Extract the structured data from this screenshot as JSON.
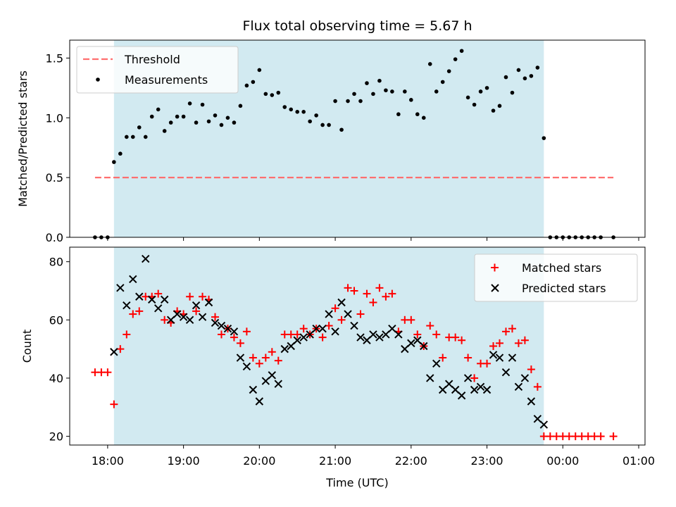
{
  "chart_data": [
    {
      "type": "scatter",
      "title": "Flux total observing time = 5.67 h",
      "ylabel": "Matched/Predicted stars",
      "xlabel": "",
      "xlim": [
        "17:30",
        "01:05"
      ],
      "ylim": [
        0,
        1.65
      ],
      "yticks": [
        "0.0",
        "0.5",
        "1.0",
        "1.5"
      ],
      "grid": false,
      "legend_position": "top-left",
      "observing_window": [
        "18:05",
        "23:45"
      ],
      "colors": {
        "observing_window": "#add8e6",
        "threshold": "#ff6f6f",
        "measurements": "#000000"
      },
      "threshold": {
        "name": "Threshold",
        "value": 0.5,
        "x_range": [
          "17:50",
          "00:40"
        ]
      },
      "series": [
        {
          "name": "Measurements",
          "points": [
            [
              "17:50",
              0
            ],
            [
              "17:55",
              0
            ],
            [
              "18:00",
              0
            ],
            [
              "18:05",
              0.63
            ],
            [
              "18:10",
              0.7
            ],
            [
              "18:15",
              0.84
            ],
            [
              "18:20",
              0.84
            ],
            [
              "18:25",
              0.92
            ],
            [
              "18:30",
              0.84
            ],
            [
              "18:35",
              1.01
            ],
            [
              "18:40",
              1.07
            ],
            [
              "18:45",
              0.89
            ],
            [
              "18:50",
              0.96
            ],
            [
              "18:55",
              1.01
            ],
            [
              "19:00",
              1.01
            ],
            [
              "19:05",
              1.12
            ],
            [
              "19:10",
              0.96
            ],
            [
              "19:15",
              1.11
            ],
            [
              "19:20",
              0.97
            ],
            [
              "19:25",
              1.02
            ],
            [
              "19:30",
              0.94
            ],
            [
              "19:35",
              1.0
            ],
            [
              "19:40",
              0.96
            ],
            [
              "19:45",
              1.1
            ],
            [
              "19:50",
              1.27
            ],
            [
              "19:55",
              1.3
            ],
            [
              "20:00",
              1.4
            ],
            [
              "20:05",
              1.2
            ],
            [
              "20:10",
              1.19
            ],
            [
              "20:15",
              1.21
            ],
            [
              "20:20",
              1.09
            ],
            [
              "20:25",
              1.07
            ],
            [
              "20:30",
              1.05
            ],
            [
              "20:35",
              1.05
            ],
            [
              "20:40",
              0.97
            ],
            [
              "20:45",
              1.02
            ],
            [
              "20:50",
              0.94
            ],
            [
              "20:55",
              0.94
            ],
            [
              "21:00",
              1.14
            ],
            [
              "21:05",
              0.9
            ],
            [
              "21:10",
              1.14
            ],
            [
              "21:15",
              1.2
            ],
            [
              "21:20",
              1.14
            ],
            [
              "21:25",
              1.29
            ],
            [
              "21:30",
              1.2
            ],
            [
              "21:35",
              1.31
            ],
            [
              "21:40",
              1.23
            ],
            [
              "21:45",
              1.22
            ],
            [
              "21:50",
              1.03
            ],
            [
              "21:55",
              1.22
            ],
            [
              "22:00",
              1.15
            ],
            [
              "22:05",
              1.03
            ],
            [
              "22:10",
              1.0
            ],
            [
              "22:15",
              1.45
            ],
            [
              "22:20",
              1.22
            ],
            [
              "22:25",
              1.3
            ],
            [
              "22:30",
              1.39
            ],
            [
              "22:35",
              1.49
            ],
            [
              "22:40",
              1.56
            ],
            [
              "22:45",
              1.17
            ],
            [
              "22:50",
              1.11
            ],
            [
              "22:55",
              1.22
            ],
            [
              "23:00",
              1.25
            ],
            [
              "23:05",
              1.06
            ],
            [
              "23:10",
              1.1
            ],
            [
              "23:15",
              1.34
            ],
            [
              "23:20",
              1.21
            ],
            [
              "23:25",
              1.4
            ],
            [
              "23:30",
              1.33
            ],
            [
              "23:35",
              1.35
            ],
            [
              "23:40",
              1.42
            ],
            [
              "23:45",
              0.83
            ],
            [
              "23:50",
              0
            ],
            [
              "23:55",
              0
            ],
            [
              "00:00",
              0
            ],
            [
              "00:05",
              0
            ],
            [
              "00:10",
              0
            ],
            [
              "00:15",
              0
            ],
            [
              "00:20",
              0
            ],
            [
              "00:25",
              0
            ],
            [
              "00:30",
              0
            ],
            [
              "00:40",
              0
            ]
          ]
        }
      ]
    },
    {
      "type": "scatter",
      "title": "",
      "xlabel": "Time (UTC)",
      "ylabel": "Count",
      "xlim": [
        "17:30",
        "01:05"
      ],
      "ylim": [
        17,
        85
      ],
      "yticks": [
        "20",
        "40",
        "60",
        "80"
      ],
      "xticks": [
        "18:00",
        "19:00",
        "20:00",
        "21:00",
        "22:00",
        "23:00",
        "00:00",
        "01:00"
      ],
      "grid": false,
      "legend_position": "top-right",
      "observing_window": [
        "18:05",
        "23:45"
      ],
      "colors": {
        "observing_window": "#add8e6",
        "matched": "#ff0000",
        "predicted": "#000000"
      },
      "series": [
        {
          "name": "Matched stars",
          "points": [
            [
              "17:50",
              42
            ],
            [
              "17:55",
              42
            ],
            [
              "18:00",
              42
            ],
            [
              "18:05",
              31
            ],
            [
              "18:10",
              50
            ],
            [
              "18:15",
              55
            ],
            [
              "18:20",
              62
            ],
            [
              "18:25",
              63
            ],
            [
              "18:30",
              68
            ],
            [
              "18:35",
              68
            ],
            [
              "18:40",
              69
            ],
            [
              "18:45",
              60
            ],
            [
              "18:50",
              59
            ],
            [
              "18:55",
              63
            ],
            [
              "19:00",
              62
            ],
            [
              "19:05",
              68
            ],
            [
              "19:10",
              63
            ],
            [
              "19:15",
              68
            ],
            [
              "19:20",
              67
            ],
            [
              "19:25",
              61
            ],
            [
              "19:30",
              55
            ],
            [
              "19:35",
              57
            ],
            [
              "19:40",
              54
            ],
            [
              "19:45",
              52
            ],
            [
              "19:50",
              56
            ],
            [
              "19:55",
              47
            ],
            [
              "20:00",
              45
            ],
            [
              "20:05",
              47
            ],
            [
              "20:10",
              49
            ],
            [
              "20:15",
              46
            ],
            [
              "20:20",
              55
            ],
            [
              "20:25",
              55
            ],
            [
              "20:30",
              55
            ],
            [
              "20:35",
              57
            ],
            [
              "20:40",
              55
            ],
            [
              "20:45",
              57
            ],
            [
              "20:50",
              54
            ],
            [
              "20:55",
              58
            ],
            [
              "21:00",
              64
            ],
            [
              "21:05",
              60
            ],
            [
              "21:10",
              71
            ],
            [
              "21:15",
              70
            ],
            [
              "21:20",
              62
            ],
            [
              "21:25",
              69
            ],
            [
              "21:30",
              66
            ],
            [
              "21:35",
              71
            ],
            [
              "21:40",
              68
            ],
            [
              "21:45",
              69
            ],
            [
              "21:50",
              56
            ],
            [
              "21:55",
              60
            ],
            [
              "22:00",
              60
            ],
            [
              "22:05",
              55
            ],
            [
              "22:10",
              51
            ],
            [
              "22:15",
              58
            ],
            [
              "22:20",
              55
            ],
            [
              "22:25",
              47
            ],
            [
              "22:30",
              54
            ],
            [
              "22:35",
              54
            ],
            [
              "22:40",
              53
            ],
            [
              "22:45",
              47
            ],
            [
              "22:50",
              40
            ],
            [
              "22:55",
              45
            ],
            [
              "23:00",
              45
            ],
            [
              "23:05",
              51
            ],
            [
              "23:10",
              52
            ],
            [
              "23:15",
              56
            ],
            [
              "23:20",
              57
            ],
            [
              "23:25",
              52
            ],
            [
              "23:30",
              53
            ],
            [
              "23:35",
              43
            ],
            [
              "23:40",
              37
            ],
            [
              "23:45",
              20
            ],
            [
              "23:50",
              20
            ],
            [
              "23:55",
              20
            ],
            [
              "00:00",
              20
            ],
            [
              "00:05",
              20
            ],
            [
              "00:10",
              20
            ],
            [
              "00:15",
              20
            ],
            [
              "00:20",
              20
            ],
            [
              "00:25",
              20
            ],
            [
              "00:30",
              20
            ],
            [
              "00:40",
              20
            ]
          ]
        },
        {
          "name": "Predicted stars",
          "points": [
            [
              "18:05",
              49
            ],
            [
              "18:10",
              71
            ],
            [
              "18:15",
              65
            ],
            [
              "18:20",
              74
            ],
            [
              "18:25",
              68
            ],
            [
              "18:30",
              81
            ],
            [
              "18:35",
              67
            ],
            [
              "18:40",
              64
            ],
            [
              "18:45",
              67
            ],
            [
              "18:50",
              60
            ],
            [
              "18:55",
              62
            ],
            [
              "19:00",
              61
            ],
            [
              "19:05",
              60
            ],
            [
              "19:10",
              65
            ],
            [
              "19:15",
              61
            ],
            [
              "19:20",
              66
            ],
            [
              "19:25",
              59
            ],
            [
              "19:30",
              58
            ],
            [
              "19:35",
              57
            ],
            [
              "19:40",
              56
            ],
            [
              "19:45",
              47
            ],
            [
              "19:50",
              44
            ],
            [
              "19:55",
              36
            ],
            [
              "20:00",
              32
            ],
            [
              "20:05",
              39
            ],
            [
              "20:10",
              41
            ],
            [
              "20:15",
              38
            ],
            [
              "20:20",
              50
            ],
            [
              "20:25",
              51
            ],
            [
              "20:30",
              53
            ],
            [
              "20:35",
              54
            ],
            [
              "20:40",
              55
            ],
            [
              "20:45",
              57
            ],
            [
              "20:50",
              57
            ],
            [
              "20:55",
              62
            ],
            [
              "21:00",
              56
            ],
            [
              "21:05",
              66
            ],
            [
              "21:10",
              62
            ],
            [
              "21:15",
              58
            ],
            [
              "21:20",
              54
            ],
            [
              "21:25",
              53
            ],
            [
              "21:30",
              55
            ],
            [
              "21:35",
              54
            ],
            [
              "21:40",
              55
            ],
            [
              "21:45",
              57
            ],
            [
              "21:50",
              55
            ],
            [
              "21:55",
              50
            ],
            [
              "22:00",
              52
            ],
            [
              "22:05",
              53
            ],
            [
              "22:10",
              51
            ],
            [
              "22:15",
              40
            ],
            [
              "22:20",
              45
            ],
            [
              "22:25",
              36
            ],
            [
              "22:30",
              38
            ],
            [
              "22:35",
              36
            ],
            [
              "22:40",
              34
            ],
            [
              "22:45",
              40
            ],
            [
              "22:50",
              36
            ],
            [
              "22:55",
              37
            ],
            [
              "23:00",
              36
            ],
            [
              "23:05",
              48
            ],
            [
              "23:10",
              47
            ],
            [
              "23:15",
              42
            ],
            [
              "23:20",
              47
            ],
            [
              "23:25",
              37
            ],
            [
              "23:30",
              40
            ],
            [
              "23:35",
              32
            ],
            [
              "23:40",
              26
            ],
            [
              "23:45",
              24
            ]
          ]
        }
      ]
    }
  ]
}
